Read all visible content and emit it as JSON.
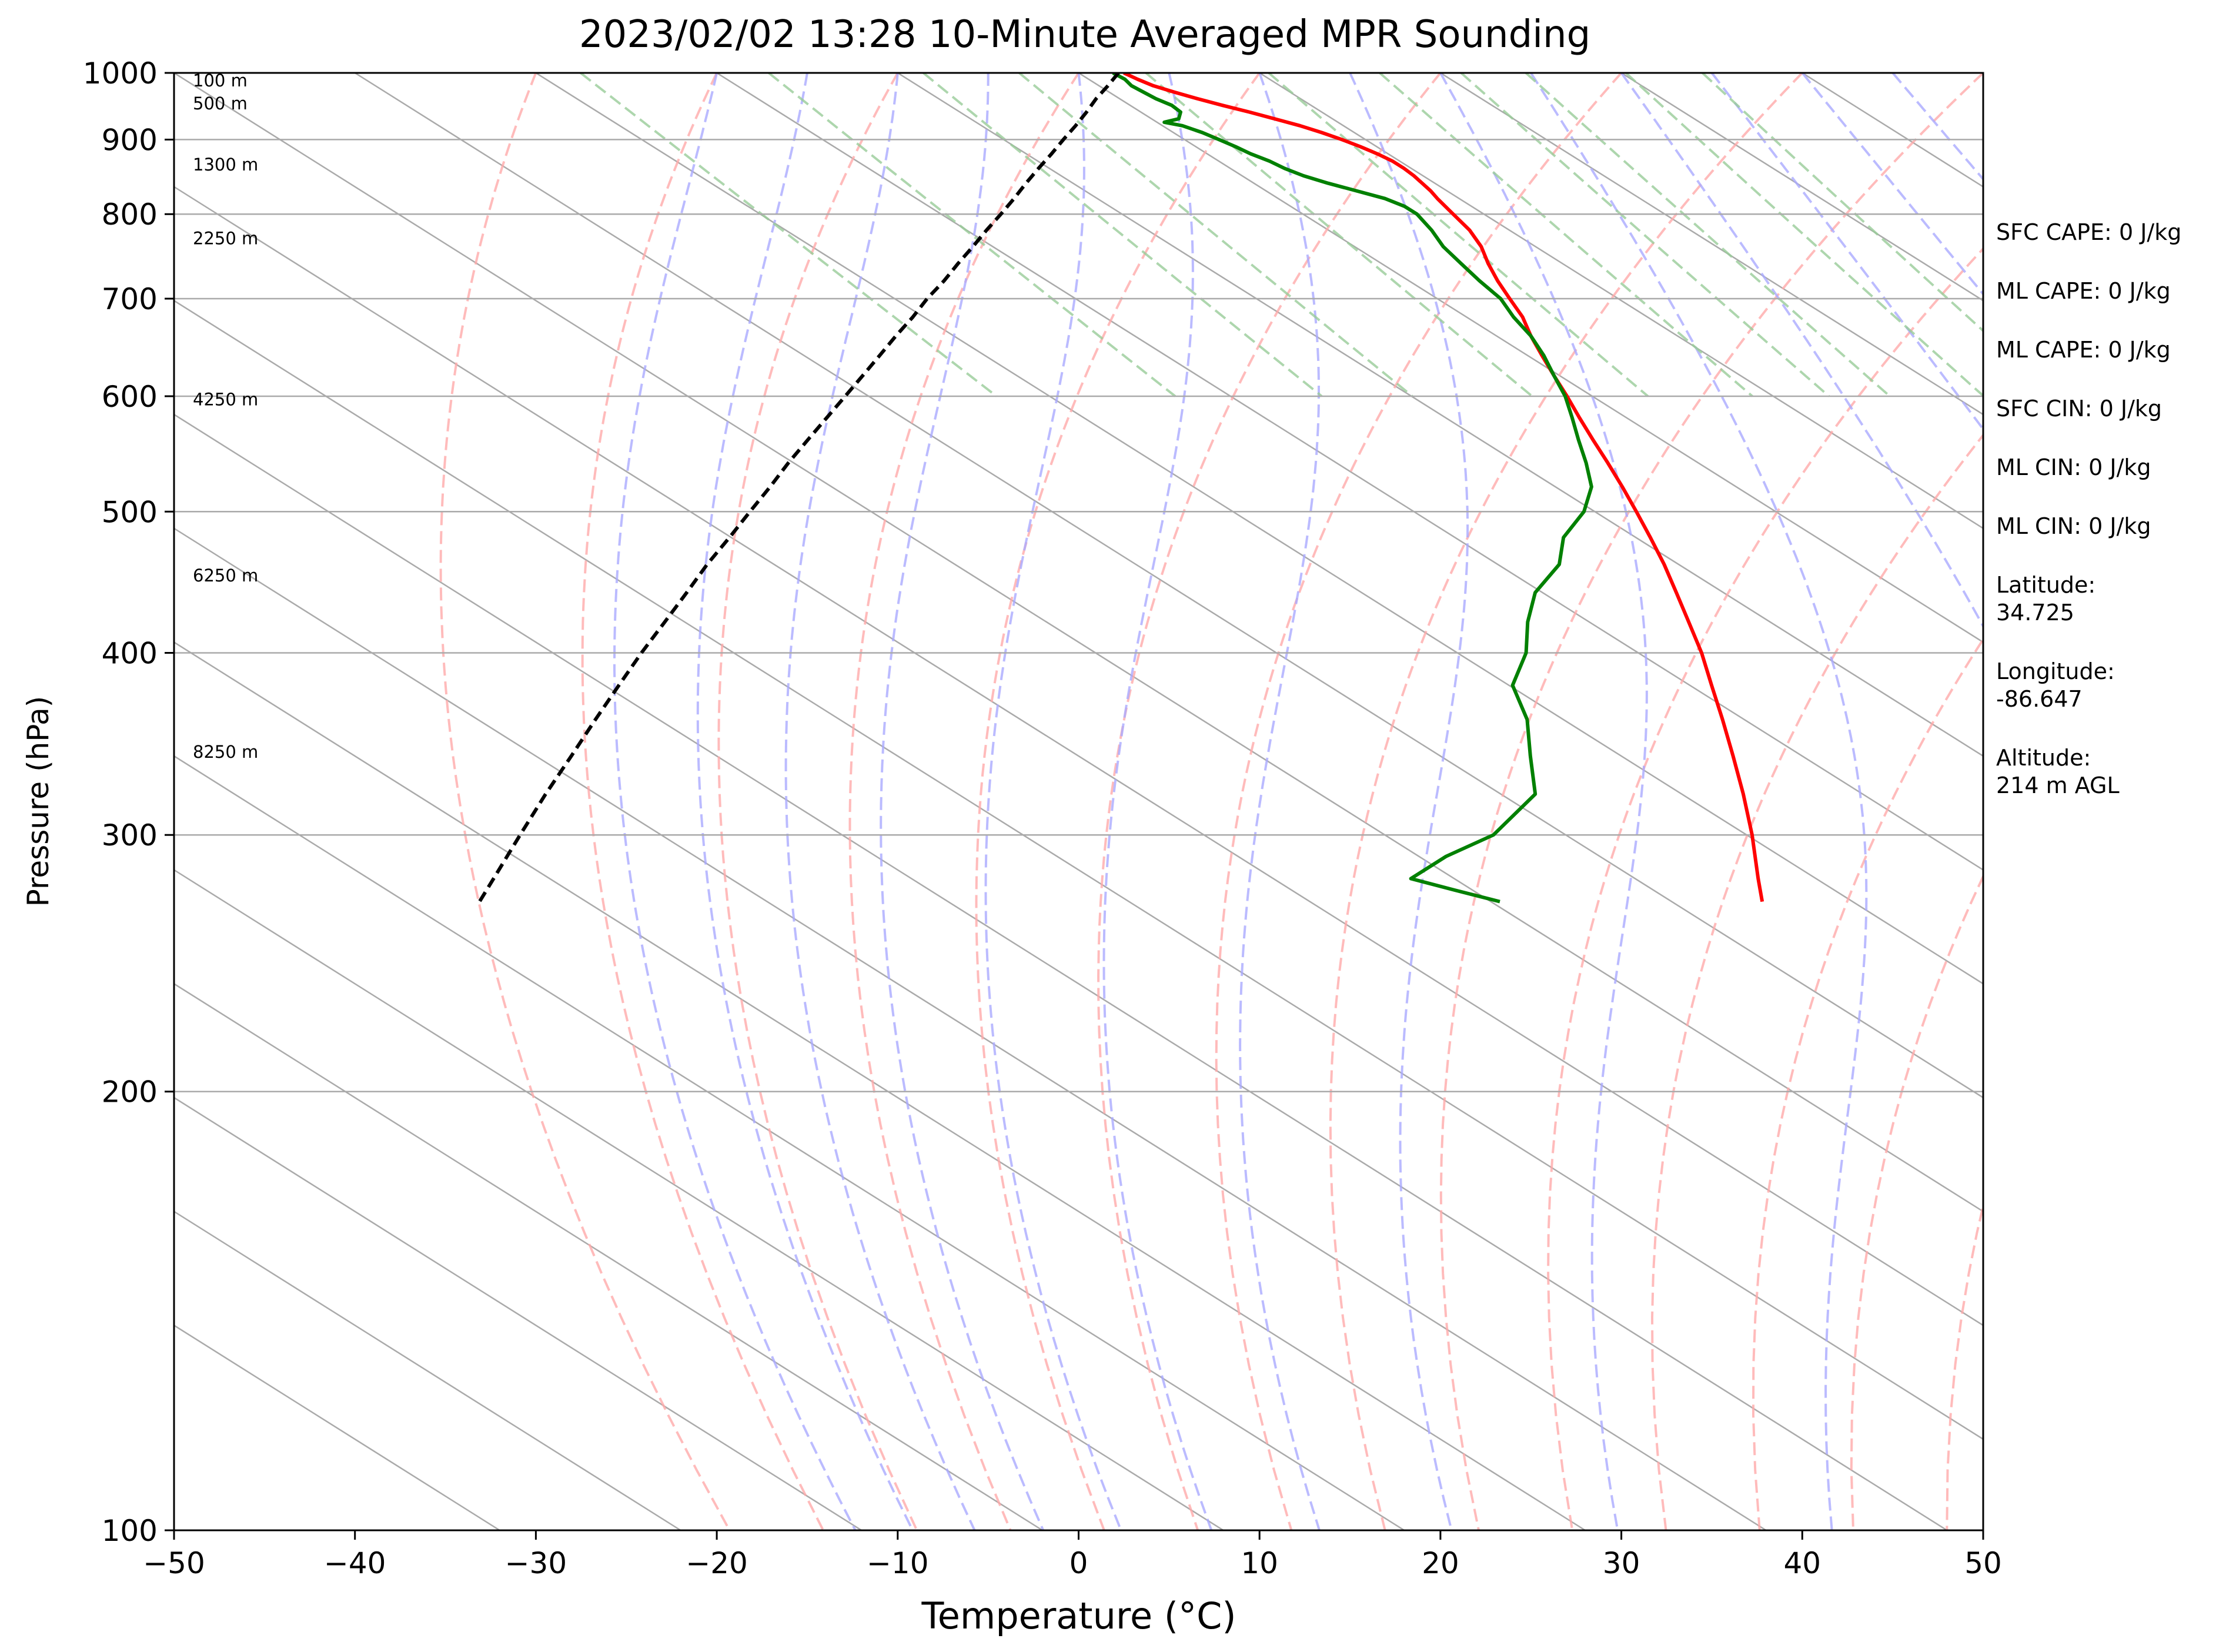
{
  "title": "2023/02/02 13:28 10-Minute Averaged MPR Sounding",
  "stats": [
    {
      "label": "SFC CAPE:",
      "value": "0 J/kg"
    },
    {
      "label": "ML CAPE:",
      "value": "0 J/kg"
    },
    {
      "label": "ML CAPE:",
      "value": "0 J/kg"
    },
    {
      "label": "SFC CIN:",
      "value": "0 J/kg"
    },
    {
      "label": "ML CIN:",
      "value": "0 J/kg"
    },
    {
      "label": "ML CIN:",
      "value": "0 J/kg"
    }
  ],
  "location": [
    {
      "label": "Latitude:",
      "value": "34.725"
    },
    {
      "label": "Longitude:",
      "value": "-86.647"
    },
    {
      "label": "Altitude:",
      "value": "214 m AGL"
    }
  ],
  "colors": {
    "temperature": "#ff0000",
    "dewpoint": "#008000",
    "parcel": "#000000",
    "isotherm": "#aaaaaa",
    "dry_adiabat": "#ffaaaa",
    "moist_adiabat": "#aaaaff",
    "mixing_ratio": "#99cc99"
  },
  "chart_data": {
    "type": "line",
    "diagram": "skew-T log-P",
    "xlabel": "Temperature (°C)",
    "ylabel": "Pressure (hPa)",
    "xlim": [
      -50,
      50
    ],
    "ylim": [
      1000,
      100
    ],
    "y_scale": "log",
    "x_ticks": [
      -50,
      -40,
      -30,
      -20,
      -10,
      0,
      10,
      20,
      30,
      40,
      50
    ],
    "x_tick_labels": [
      "−50",
      "−40",
      "−30",
      "−20",
      "−10",
      "0",
      "10",
      "20",
      "30",
      "40",
      "50"
    ],
    "y_ticks": [
      1000,
      900,
      800,
      700,
      600,
      500,
      400,
      300,
      200,
      100
    ],
    "y_tick_labels": [
      "1000",
      "900",
      "800",
      "700",
      "600",
      "500",
      "400",
      "300",
      "200",
      "100"
    ],
    "grid": true,
    "height_labels": [
      {
        "text": "100 m",
        "pressure": 988
      },
      {
        "text": "500 m",
        "pressure": 953
      },
      {
        "text": "1300 m",
        "pressure": 865
      },
      {
        "text": "2250 m",
        "pressure": 770
      },
      {
        "text": "4250 m",
        "pressure": 597
      },
      {
        "text": "6250 m",
        "pressure": 452
      },
      {
        "text": "8250 m",
        "pressure": 342
      }
    ],
    "series": [
      {
        "role": "temperature",
        "pressure": [
          1000,
          990,
          980,
          970,
          960,
          950,
          940,
          930,
          920,
          910,
          900,
          890,
          880,
          870,
          860,
          850,
          840,
          830,
          820,
          800,
          780,
          760,
          740,
          720,
          700,
          680,
          660,
          640,
          620,
          600,
          580,
          560,
          540,
          520,
          500,
          480,
          460,
          440,
          420,
          400,
          380,
          360,
          340,
          320,
          300,
          280,
          270
        ],
        "values": [
          2.5,
          2.7,
          3.0,
          3.6,
          4.3,
          5.1,
          6.0,
          6.8,
          7.6,
          8.2,
          8.7,
          9.1,
          9.4,
          9.6,
          9.6,
          9.5,
          9.3,
          9.1,
          8.8,
          8.3,
          7.8,
          7.0,
          5.9,
          4.9,
          4.0,
          3.1,
          1.9,
          0.8,
          -0.3,
          -1.4,
          -2.6,
          -3.8,
          -5.0,
          -6.3,
          -7.7,
          -9.2,
          -10.8,
          -12.6,
          -14.5,
          -16.5,
          -18.8,
          -21.2,
          -23.8,
          -26.6,
          -29.7,
          -33.2,
          -35.0
        ]
      },
      {
        "role": "dewpoint",
        "pressure": [
          1000,
          990,
          980,
          970,
          960,
          950,
          940,
          930,
          925,
          920,
          910,
          900,
          890,
          880,
          870,
          860,
          850,
          840,
          830,
          820,
          810,
          800,
          780,
          760,
          740,
          720,
          700,
          680,
          660,
          640,
          620,
          600,
          580,
          560,
          540,
          520,
          500,
          480,
          460,
          440,
          420,
          400,
          380,
          360,
          340,
          320,
          300,
          290,
          280,
          275,
          270
        ],
        "values": [
          1.9,
          2.0,
          1.8,
          1.9,
          2.0,
          2.3,
          2.2,
          1.5,
          0.4,
          1.1,
          1.6,
          1.9,
          2.2,
          2.4,
          2.8,
          3.0,
          3.4,
          4.1,
          5.0,
          5.9,
          6.3,
          6.3,
          5.7,
          4.9,
          4.4,
          3.9,
          3.5,
          2.6,
          1.9,
          0.9,
          -0.3,
          -1.5,
          -3.0,
          -4.6,
          -6.2,
          -8.0,
          -10.6,
          -14.0,
          -16.6,
          -20.4,
          -23.4,
          -26.2,
          -29.8,
          -32.0,
          -35.0,
          -38.1,
          -44.0,
          -48.5,
          -52.4,
          -51.0,
          -49.5
        ]
      },
      {
        "role": "parcel",
        "pressure": [
          1000,
          980,
          960,
          940,
          920,
          900,
          880,
          860,
          840,
          820,
          800,
          780,
          760,
          740,
          720,
          700,
          680,
          660,
          640,
          620,
          600,
          580,
          560,
          540,
          520,
          500,
          480,
          460,
          440,
          420,
          400,
          380,
          360,
          340,
          320,
          300,
          280,
          270
        ],
        "values": [
          2.2,
          0.5,
          -1.3,
          -3.0,
          -4.8,
          -6.7,
          -8.6,
          -10.6,
          -12.6,
          -14.6,
          -16.7,
          -18.9,
          -21.1,
          -23.4,
          -25.7,
          -28.2,
          -30.6,
          -33.2,
          -35.8,
          -38.5,
          -41.3,
          -44.2,
          -47.2,
          -50.3,
          -53.4,
          -56.7,
          -60.1,
          -63.7,
          -67.3,
          -71.1,
          -75.1,
          -79.2,
          -83.5,
          -88.0,
          -92.8,
          -97.8,
          -103.1,
          -105.9
        ]
      }
    ]
  }
}
